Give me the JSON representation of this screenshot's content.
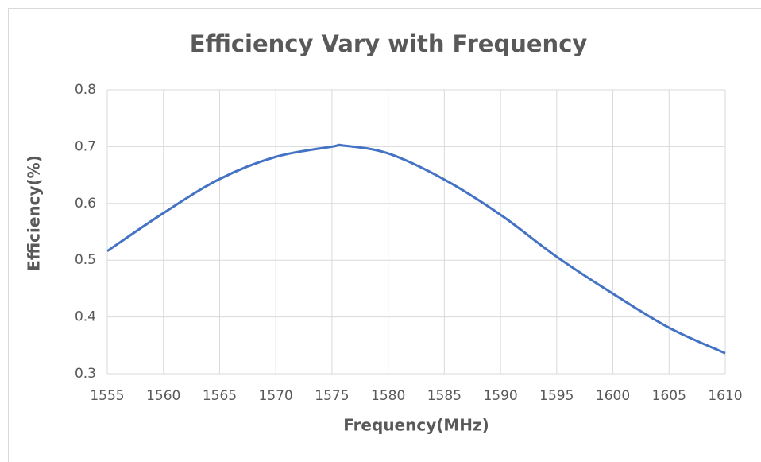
{
  "chart_data": {
    "type": "line",
    "title": "Efficiency Vary with Frequency",
    "x_label": "Frequency(MHz)",
    "y_label": "Efficiency(%)",
    "x": [
      1555,
      1560,
      1565,
      1570,
      1575,
      1576,
      1580,
      1585,
      1590,
      1595,
      1600,
      1605,
      1610
    ],
    "series": [
      {
        "name": "Efficiency",
        "color": "#4472c4",
        "values": [
          0.516,
          0.583,
          0.643,
          0.682,
          0.7,
          0.702,
          0.688,
          0.642,
          0.58,
          0.506,
          0.441,
          0.381,
          0.336
        ]
      }
    ],
    "xlim": [
      1555,
      1610
    ],
    "xticks": [
      1555,
      1560,
      1565,
      1570,
      1575,
      1580,
      1585,
      1590,
      1595,
      1600,
      1605,
      1610
    ],
    "ylim": [
      0.3,
      0.8
    ],
    "yticks": [
      0.3,
      0.4,
      0.5,
      0.6,
      0.7,
      0.8
    ],
    "grid": true
  }
}
